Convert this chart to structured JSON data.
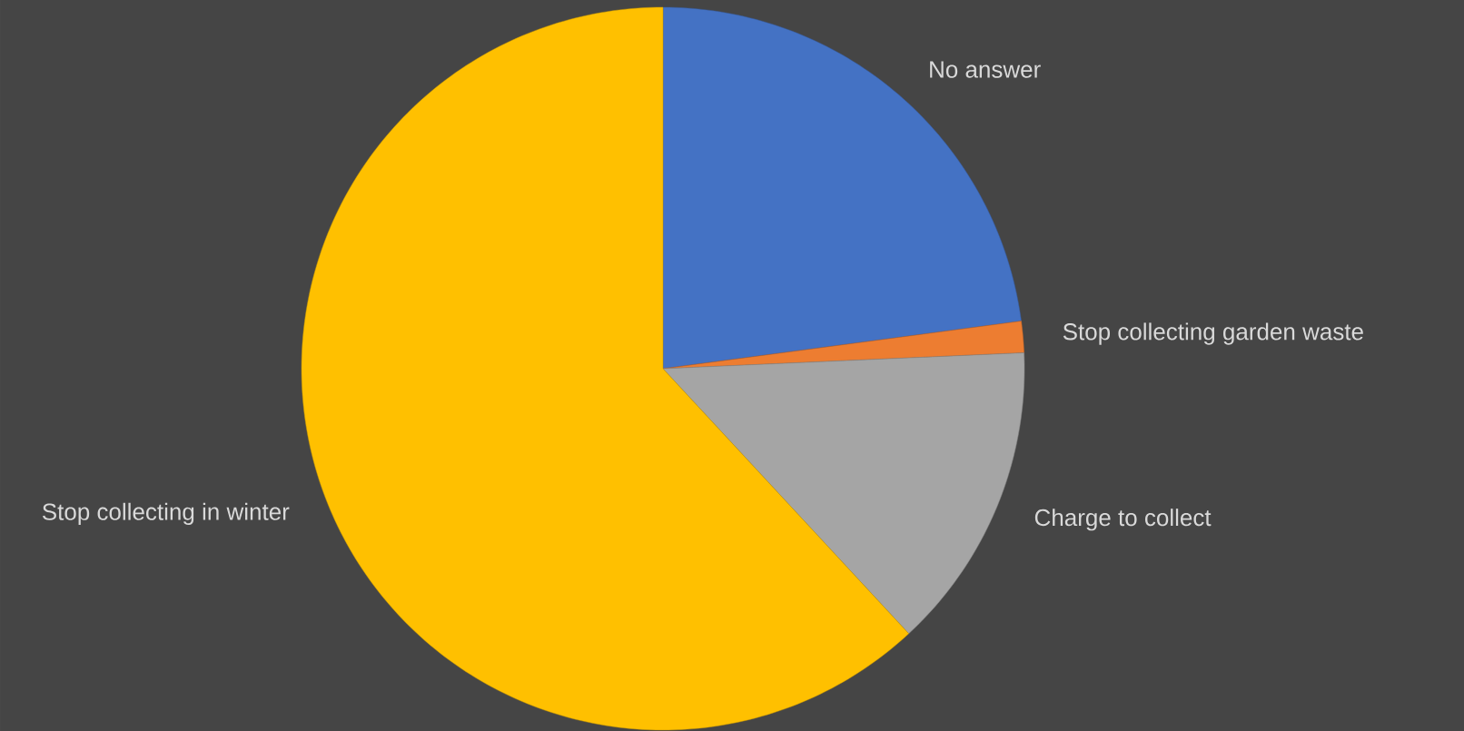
{
  "chart_data": {
    "type": "pie",
    "categories": [
      "No answer",
      "Stop collecting garden waste",
      "Charge to collect",
      "Stop collecting in winter"
    ],
    "values": [
      22.9,
      1.4,
      13.8,
      61.9
    ],
    "colors": [
      "#4472c4",
      "#ed7d31",
      "#a5a5a5",
      "#ffc000"
    ]
  }
}
